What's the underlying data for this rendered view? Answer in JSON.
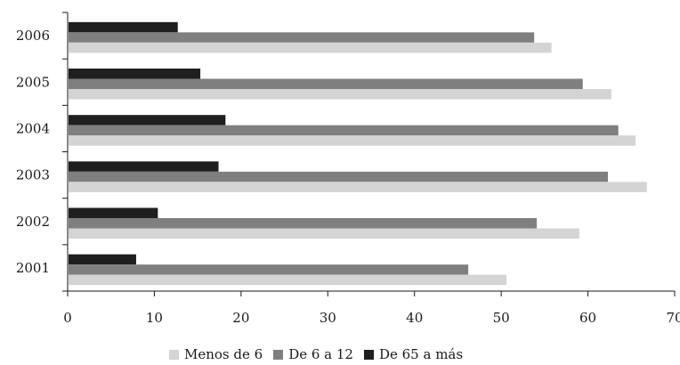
{
  "chart_data": {
    "type": "bar",
    "orientation": "horizontal",
    "categories": [
      "2001",
      "2002",
      "2003",
      "2004",
      "2005",
      "2006"
    ],
    "series": [
      {
        "name": "Menos de 6",
        "color": "#d4d4d4",
        "values": [
          50.6,
          59.0,
          66.8,
          65.5,
          62.7,
          55.8
        ]
      },
      {
        "name": "De 6 a 12",
        "color": "#7f7f7f",
        "values": [
          46.2,
          54.1,
          62.3,
          63.5,
          59.4,
          53.8
        ]
      },
      {
        "name": "De 65 a más",
        "color": "#1f1f1f",
        "values": [
          7.9,
          10.4,
          17.4,
          18.2,
          15.3,
          12.7
        ]
      }
    ],
    "xlim": [
      0,
      70
    ],
    "xticks": [
      "0",
      "10",
      "20",
      "30",
      "40",
      "50",
      "60",
      "70"
    ],
    "grid": false,
    "legend_position": "bottom"
  }
}
